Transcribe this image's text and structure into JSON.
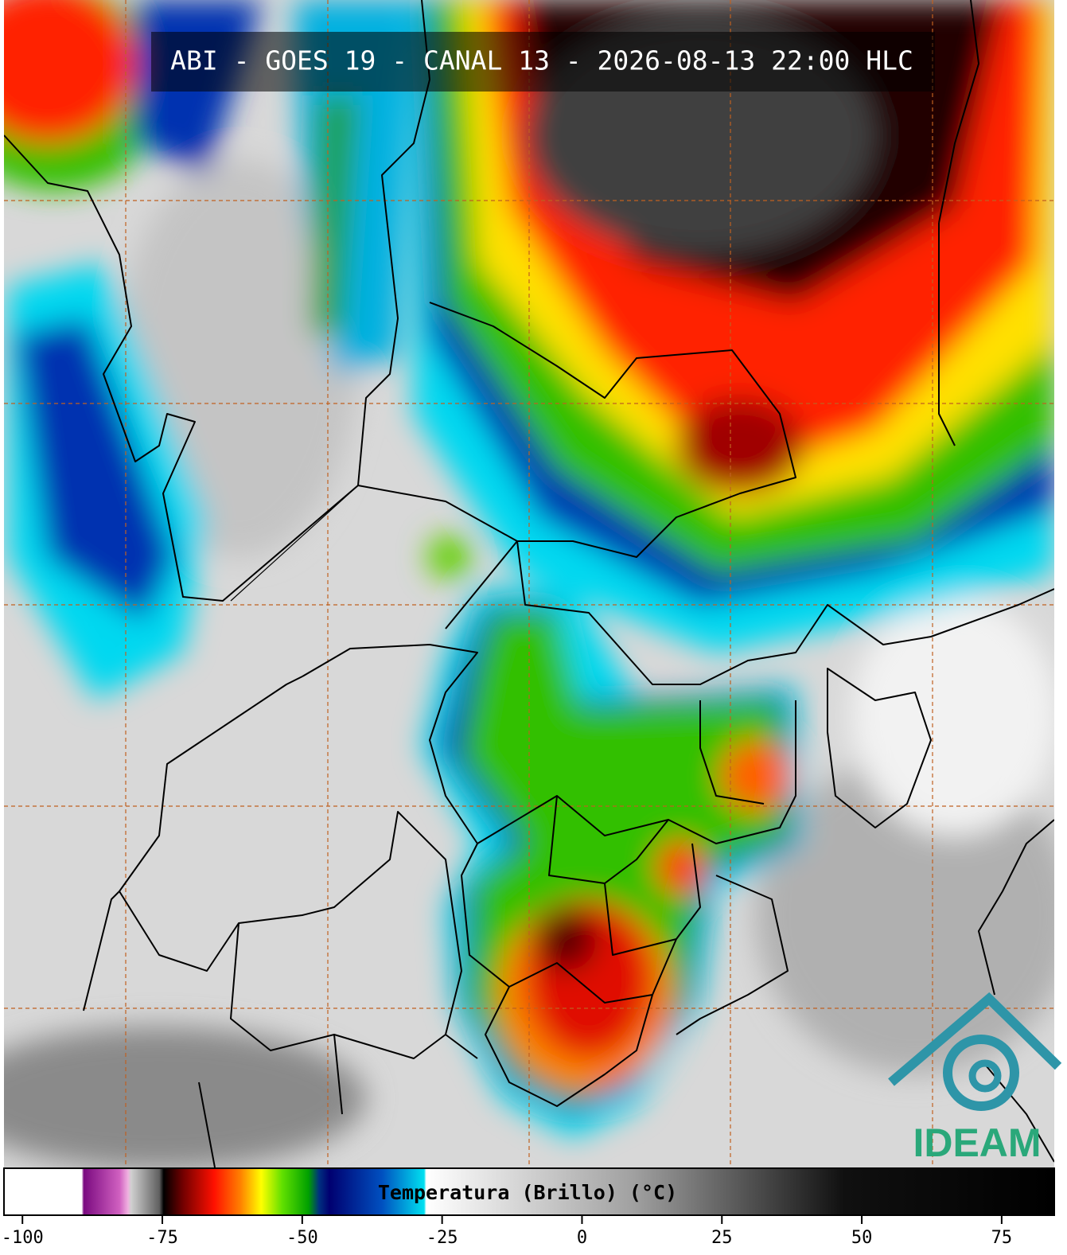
{
  "header": {
    "title": "ABI - GOES 19 - CANAL 13 - 2026-08-13 22:00 HLC"
  },
  "logo": {
    "text": "IDEAM"
  },
  "colorbar": {
    "label": "Temperatura (Brillo) (°C)",
    "range": [
      -103.3,
      84.4
    ],
    "ticks": [
      -100,
      -75,
      -50,
      -25,
      0,
      25,
      50,
      75
    ]
  }
}
